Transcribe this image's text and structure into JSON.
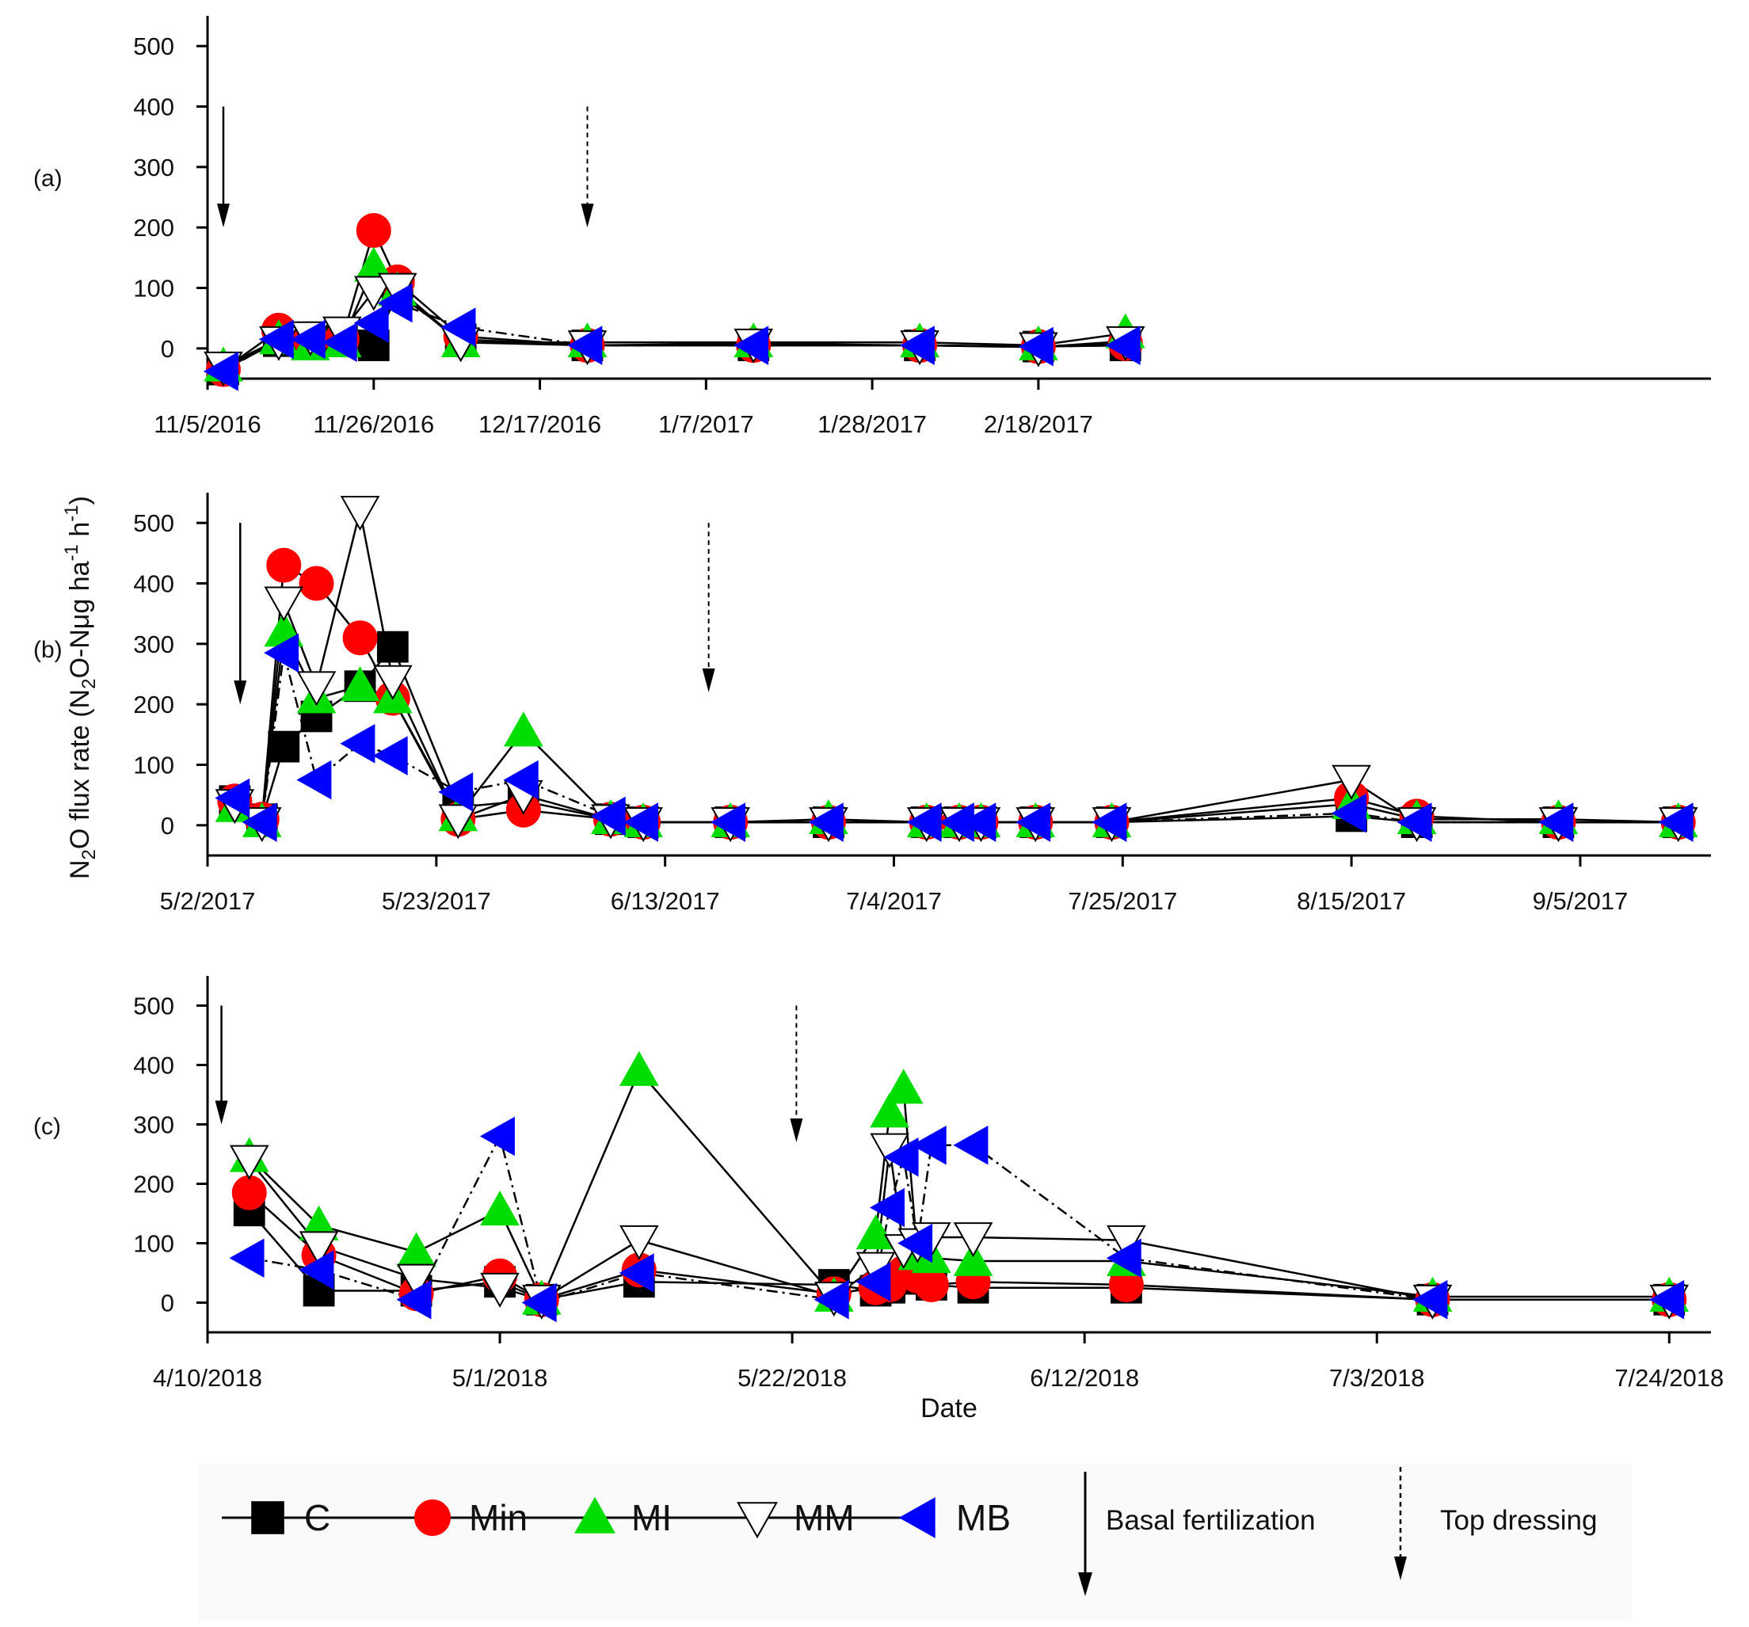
{
  "chart_data": [
    {
      "type": "line",
      "panel_label": "(a)",
      "x_unit": "days since 11/5/2016",
      "xlim": [
        0,
        190
      ],
      "ylim": [
        -50,
        550
      ],
      "yticks": [
        0,
        100,
        200,
        300,
        400,
        500
      ],
      "xtick_values": [
        0,
        42,
        63,
        84,
        105,
        126,
        147
      ],
      "xtick_labels": [
        "11/5/2016",
        "11/26/2016",
        "12/17/2016",
        "1/7/2017",
        "1/28/2017",
        "2/18/2017"
      ],
      "xtick_label_positions": [
        0,
        21,
        42,
        63,
        84,
        105
      ],
      "arrows": [
        {
          "kind": "basal",
          "x": 2,
          "y_top": 400,
          "y_bottom": 200
        },
        {
          "kind": "top",
          "x": 48,
          "y_top": 400,
          "y_bottom": 200
        }
      ],
      "x": [
        2,
        9,
        13,
        17,
        21,
        24,
        32,
        48,
        69,
        90,
        105,
        116
      ],
      "series": [
        {
          "name": "C",
          "values": [
            -35,
            12,
            10,
            12,
            5,
            90,
            15,
            5,
            5,
            5,
            3,
            5
          ]
        },
        {
          "name": "Min",
          "values": [
            -35,
            30,
            15,
            15,
            195,
            110,
            20,
            5,
            5,
            5,
            3,
            8
          ]
        },
        {
          "name": "MI",
          "values": [
            -30,
            15,
            5,
            10,
            135,
            95,
            10,
            10,
            10,
            10,
            5,
            25
          ]
        },
        {
          "name": "MM",
          "values": [
            -30,
            12,
            20,
            28,
            95,
            100,
            10,
            5,
            8,
            5,
            2,
            12
          ]
        },
        {
          "name": "MB",
          "values": [
            -38,
            15,
            15,
            10,
            42,
            75,
            35,
            5,
            5,
            5,
            3,
            5
          ]
        }
      ]
    },
    {
      "type": "line",
      "panel_label": "(b)",
      "x_unit": "days since 5/2/2017",
      "xlim": [
        0,
        138
      ],
      "ylim": [
        -50,
        550
      ],
      "yticks": [
        0,
        100,
        200,
        300,
        400,
        500
      ],
      "xtick_labels": [
        "5/2/2017",
        "5/23/2017",
        "6/13/2017",
        "7/4/2017",
        "7/25/2017",
        "8/15/2017",
        "9/5/2017"
      ],
      "xtick_label_positions": [
        0,
        21,
        42,
        63,
        84,
        105,
        126
      ],
      "arrows": [
        {
          "kind": "basal",
          "x": 3,
          "y_top": 500,
          "y_bottom": 200
        },
        {
          "kind": "top",
          "x": 46,
          "y_top": 500,
          "y_bottom": 220
        }
      ],
      "x": [
        2.5,
        5,
        7,
        10,
        14,
        17,
        23,
        29,
        37,
        40,
        48,
        57,
        66,
        69,
        71,
        76,
        83,
        105,
        111,
        124,
        135
      ],
      "series": [
        {
          "name": "C",
          "values": [
            40,
            10,
            130,
            180,
            230,
            295,
            30,
            40,
            10,
            5,
            5,
            5,
            5,
            5,
            5,
            5,
            5,
            15,
            5,
            5,
            5
          ]
        },
        {
          "name": "Min",
          "values": [
            40,
            10,
            430,
            400,
            310,
            210,
            10,
            25,
            10,
            5,
            5,
            5,
            5,
            5,
            5,
            5,
            5,
            45,
            15,
            5,
            5
          ]
        },
        {
          "name": "MI",
          "values": [
            30,
            5,
            320,
            210,
            230,
            210,
            15,
            155,
            10,
            5,
            5,
            10,
            5,
            5,
            5,
            5,
            5,
            35,
            10,
            10,
            5
          ]
        },
        {
          "name": "MM",
          "values": [
            35,
            5,
            370,
            230,
            520,
            240,
            10,
            50,
            10,
            5,
            5,
            5,
            5,
            5,
            5,
            5,
            5,
            75,
            5,
            5,
            5
          ]
        },
        {
          "name": "MB",
          "values": [
            45,
            5,
            285,
            75,
            135,
            115,
            55,
            75,
            15,
            5,
            5,
            5,
            5,
            5,
            5,
            5,
            5,
            20,
            5,
            5,
            5
          ]
        }
      ]
    },
    {
      "type": "line",
      "panel_label": "(c)",
      "x_unit": "days since 4/10/2018",
      "xlim": [
        0,
        108
      ],
      "ylim": [
        -50,
        550
      ],
      "yticks": [
        0,
        100,
        200,
        300,
        400,
        500
      ],
      "xtick_labels": [
        "4/10/2018",
        "5/1/2018",
        "5/22/2018",
        "6/12/2018",
        "7/3/2018",
        "7/24/2018"
      ],
      "xtick_label_positions": [
        0,
        21,
        42,
        63,
        84,
        105
      ],
      "arrows": [
        {
          "kind": "basal",
          "x": 1,
          "y_top": 500,
          "y_bottom": 300
        },
        {
          "kind": "top",
          "x": 42.3,
          "y_top": 500,
          "y_bottom": 270
        }
      ],
      "x": [
        3,
        8,
        15,
        21,
        24,
        31,
        45,
        48,
        49,
        50,
        51,
        52,
        55,
        66,
        88,
        105
      ],
      "series": [
        {
          "name": "C",
          "values": [
            155,
            20,
            20,
            35,
            5,
            35,
            30,
            20,
            25,
            40,
            45,
            30,
            25,
            25,
            5,
            5
          ]
        },
        {
          "name": "Min",
          "values": [
            185,
            80,
            15,
            45,
            5,
            55,
            15,
            25,
            30,
            50,
            45,
            30,
            35,
            30,
            5,
            5
          ]
        },
        {
          "name": "MI",
          "values": [
            245,
            130,
            85,
            155,
            5,
            390,
            10,
            115,
            320,
            360,
            80,
            75,
            70,
            70,
            10,
            10
          ]
        },
        {
          "name": "MM",
          "values": [
            240,
            95,
            40,
            25,
            5,
            105,
            10,
            60,
            260,
            90,
            100,
            110,
            110,
            105,
            5,
            5
          ]
        },
        {
          "name": "MB",
          "values": [
            75,
            55,
            5,
            280,
            0,
            50,
            5,
            35,
            160,
            245,
            100,
            265,
            265,
            75,
            5,
            5
          ]
        }
      ]
    }
  ],
  "y_axis_title": {
    "base": "N",
    "sub1": "2",
    "mid1": "O flux rate (N",
    "sub2": "2",
    "mid2": "O-Nμg ha",
    "sup1": "-1",
    "mid3": " h",
    "sup2": "-1",
    "end": ")"
  },
  "x_axis_title": "Date",
  "legend": {
    "series_labels": [
      "C",
      "Min",
      "MI",
      "MM",
      "MB"
    ],
    "basal_label": "Basal fertilization",
    "top_label": "Top dressing"
  },
  "series_styles": {
    "C": {
      "marker": "square",
      "color": "#000000",
      "stroke": "#000000",
      "dash": ""
    },
    "Min": {
      "marker": "circle",
      "color": "#ff0000",
      "stroke": "#ff0000",
      "dash": ""
    },
    "MI": {
      "marker": "triangle-up",
      "color": "#00dd00",
      "stroke": "#00dd00",
      "dash": ""
    },
    "MM": {
      "marker": "triangle-down",
      "color": "#ffffff",
      "stroke": "#000000",
      "dash": ""
    },
    "MB": {
      "marker": "triangle-left",
      "color": "#0000ff",
      "stroke": "#0000ff",
      "dash": "14,6,3,6"
    }
  }
}
